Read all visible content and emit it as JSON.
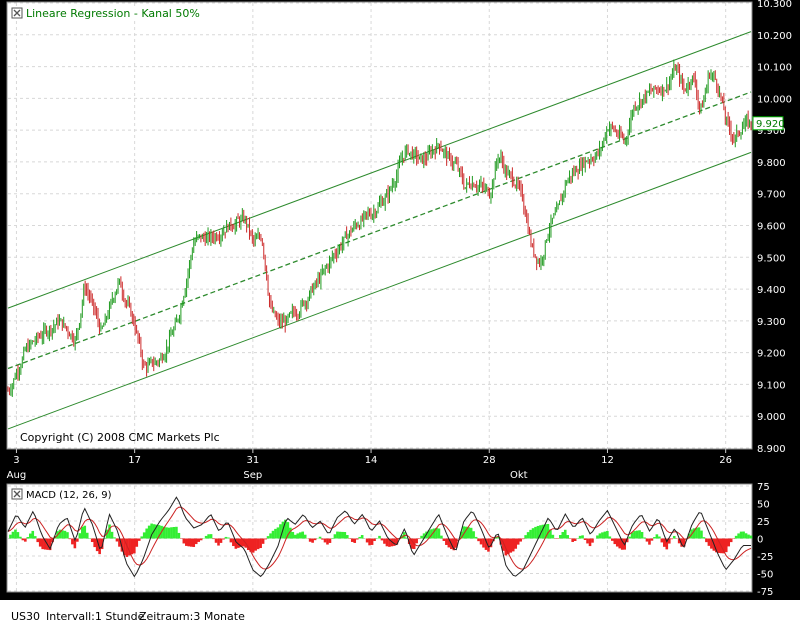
{
  "footer": {
    "symbol": "US30",
    "interval": "Intervall:1 Stunde",
    "period": "Zeitraum:3 Monate"
  },
  "chart_data": [
    {
      "type": "candlestick",
      "title": "Lineare Regression - Kanal 50%",
      "copyright": "Copyright (C) 2008 CMC Markets Plc",
      "ylim": [
        8900,
        10300
      ],
      "yticks": [
        8900,
        9000,
        9100,
        9200,
        9300,
        9400,
        9500,
        9600,
        9700,
        9800,
        9900,
        10000,
        10100,
        10200,
        10300
      ],
      "ytick_labels": [
        "8.900",
        "9.000",
        "9.100",
        "9.200",
        "9.300",
        "9.400",
        "9.500",
        "9.600",
        "9.700",
        "9.800",
        "9.900",
        "10.000",
        "10.100",
        "10.200",
        "10.300"
      ],
      "x_range": [
        0,
        88
      ],
      "xticks": [
        {
          "x": 1,
          "day": "3",
          "month": "Aug"
        },
        {
          "x": 15,
          "day": "17",
          "month": ""
        },
        {
          "x": 29,
          "day": "31",
          "month": "Sep"
        },
        {
          "x": 43,
          "day": "14",
          "month": ""
        },
        {
          "x": 57,
          "day": "28",
          "month": ""
        },
        {
          "x": 60.5,
          "day": "",
          "month": "Okt"
        },
        {
          "x": 71,
          "day": "12",
          "month": ""
        },
        {
          "x": 85,
          "day": "26",
          "month": ""
        }
      ],
      "close_path": [
        [
          0,
          9080
        ],
        [
          2,
          9210
        ],
        [
          4,
          9260
        ],
        [
          6,
          9300
        ],
        [
          8,
          9240
        ],
        [
          9,
          9420
        ],
        [
          11,
          9260
        ],
        [
          13,
          9430
        ],
        [
          15,
          9280
        ],
        [
          16,
          9150
        ],
        [
          18,
          9180
        ],
        [
          20,
          9300
        ],
        [
          22,
          9560
        ],
        [
          24,
          9560
        ],
        [
          26,
          9600
        ],
        [
          28,
          9620
        ],
        [
          29,
          9540
        ],
        [
          30,
          9570
        ],
        [
          31,
          9330
        ],
        [
          32,
          9290
        ],
        [
          33,
          9300
        ],
        [
          35,
          9360
        ],
        [
          37,
          9440
        ],
        [
          39,
          9530
        ],
        [
          41,
          9600
        ],
        [
          43,
          9640
        ],
        [
          45,
          9700
        ],
        [
          47,
          9840
        ],
        [
          49,
          9800
        ],
        [
          51,
          9860
        ],
        [
          52,
          9810
        ],
        [
          53,
          9790
        ],
        [
          54,
          9720
        ],
        [
          55,
          9740
        ],
        [
          57,
          9700
        ],
        [
          58,
          9830
        ],
        [
          59,
          9760
        ],
        [
          60,
          9740
        ],
        [
          61,
          9670
        ],
        [
          62,
          9520
        ],
        [
          63,
          9480
        ],
        [
          64,
          9600
        ],
        [
          65,
          9640
        ],
        [
          66,
          9740
        ],
        [
          68,
          9800
        ],
        [
          70,
          9830
        ],
        [
          71,
          9920
        ],
        [
          73,
          9860
        ],
        [
          74,
          9980
        ],
        [
          76,
          10020
        ],
        [
          78,
          10040
        ],
        [
          79,
          10100
        ],
        [
          80,
          10020
        ],
        [
          81,
          10080
        ],
        [
          82,
          9950
        ],
        [
          83,
          10090
        ],
        [
          84,
          10040
        ],
        [
          85,
          9920
        ],
        [
          86,
          9870
        ],
        [
          87,
          9920
        ]
      ],
      "current_value": 9920,
      "current_label": "9.920",
      "regression": {
        "start": [
          0,
          9150
        ],
        "end": [
          88,
          10020
        ],
        "upper_offset": 190,
        "lower_offset": -190
      }
    },
    {
      "type": "macd",
      "title": "MACD (12, 26, 9)",
      "ylim": [
        -75,
        75
      ],
      "yticks": [
        75,
        50,
        25,
        0,
        -25,
        -50,
        -75
      ],
      "macd_path": [
        [
          0,
          10
        ],
        [
          1,
          35
        ],
        [
          2,
          15
        ],
        [
          3,
          40
        ],
        [
          4,
          5
        ],
        [
          5,
          -15
        ],
        [
          6,
          20
        ],
        [
          7,
          30
        ],
        [
          8,
          -5
        ],
        [
          9,
          45
        ],
        [
          10,
          20
        ],
        [
          11,
          -20
        ],
        [
          12,
          35
        ],
        [
          13,
          10
        ],
        [
          14,
          -35
        ],
        [
          15,
          -55
        ],
        [
          16,
          -30
        ],
        [
          17,
          5
        ],
        [
          18,
          25
        ],
        [
          19,
          40
        ],
        [
          20,
          60
        ],
        [
          21,
          30
        ],
        [
          22,
          15
        ],
        [
          23,
          20
        ],
        [
          24,
          35
        ],
        [
          25,
          10
        ],
        [
          26,
          25
        ],
        [
          27,
          -5
        ],
        [
          28,
          -15
        ],
        [
          29,
          -45
        ],
        [
          30,
          -55
        ],
        [
          31,
          -35
        ],
        [
          32,
          -10
        ],
        [
          33,
          30
        ],
        [
          34,
          20
        ],
        [
          35,
          35
        ],
        [
          36,
          15
        ],
        [
          37,
          25
        ],
        [
          38,
          5
        ],
        [
          39,
          30
        ],
        [
          40,
          40
        ],
        [
          41,
          20
        ],
        [
          42,
          35
        ],
        [
          43,
          10
        ],
        [
          44,
          25
        ],
        [
          45,
          0
        ],
        [
          46,
          -10
        ],
        [
          47,
          15
        ],
        [
          48,
          -25
        ],
        [
          49,
          -5
        ],
        [
          50,
          15
        ],
        [
          51,
          35
        ],
        [
          52,
          5
        ],
        [
          53,
          -20
        ],
        [
          54,
          25
        ],
        [
          55,
          40
        ],
        [
          56,
          15
        ],
        [
          57,
          -15
        ],
        [
          58,
          10
        ],
        [
          59,
          -40
        ],
        [
          60,
          -55
        ],
        [
          61,
          -45
        ],
        [
          62,
          -20
        ],
        [
          63,
          5
        ],
        [
          64,
          30
        ],
        [
          65,
          10
        ],
        [
          66,
          35
        ],
        [
          67,
          15
        ],
        [
          68,
          30
        ],
        [
          69,
          5
        ],
        [
          70,
          25
        ],
        [
          71,
          40
        ],
        [
          72,
          15
        ],
        [
          73,
          -10
        ],
        [
          74,
          20
        ],
        [
          75,
          35
        ],
        [
          76,
          10
        ],
        [
          77,
          30
        ],
        [
          78,
          -5
        ],
        [
          79,
          15
        ],
        [
          80,
          -15
        ],
        [
          81,
          20
        ],
        [
          82,
          40
        ],
        [
          83,
          10
        ],
        [
          84,
          -20
        ],
        [
          85,
          -45
        ],
        [
          86,
          -30
        ],
        [
          87,
          -10
        ]
      ]
    }
  ]
}
